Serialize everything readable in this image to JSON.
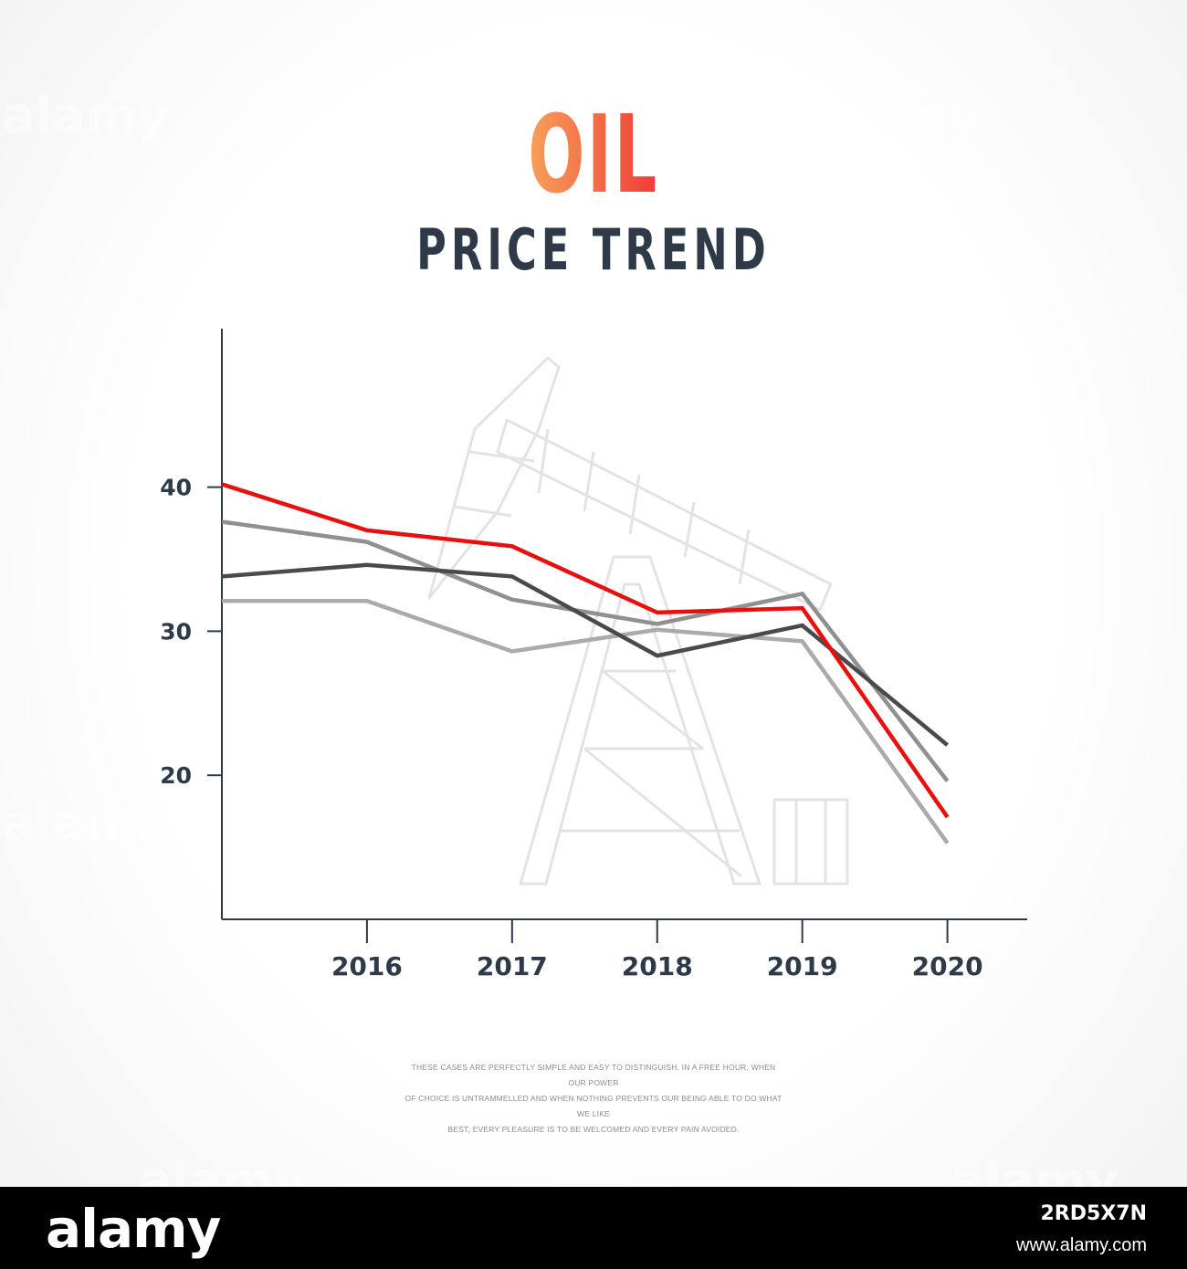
{
  "colors": {
    "title_gradient_start": "#f7a15a",
    "title_gradient_end": "#ef3b36",
    "subtitle": "#2e3a47",
    "axis": "#2e3a47",
    "background_icon": "#e3e3e3"
  },
  "background_icon": "oil-pump-jack-icon",
  "chart_data": {
    "type": "line",
    "title": "OIL",
    "subtitle": "PRICE TREND",
    "xlabel": "",
    "ylabel": "",
    "x": [
      2015,
      2016,
      2017,
      2018,
      2019,
      2020
    ],
    "xticks": [
      "2016",
      "2017",
      "2018",
      "2019",
      "2020"
    ],
    "yticks": [
      "20",
      "30",
      "40"
    ],
    "ylim": [
      10,
      51
    ],
    "xlim": [
      2015,
      2020.55
    ],
    "grid": false,
    "legend": "none",
    "series": [
      {
        "color": "#aaaaaa",
        "values": [
          32.1,
          32.1,
          28.6,
          30.1,
          29.3,
          15.3
        ]
      },
      {
        "color": "#909090",
        "values": [
          37.6,
          36.2,
          32.2,
          30.5,
          32.6,
          19.6
        ]
      },
      {
        "color": "#4a4a4a",
        "values": [
          33.8,
          34.6,
          33.8,
          28.3,
          30.4,
          22.1
        ]
      },
      {
        "color": "#e8100e",
        "values": [
          40.2,
          37.0,
          35.9,
          31.3,
          31.6,
          17.1
        ]
      }
    ]
  },
  "footnote": {
    "lines": [
      "These cases are perfectly simple and easy to distinguish. In a free hour, when our power",
      "of choice is untrammelled and when nothing prevents our being able to do what we like",
      "best, every pleasure is to be welcomed and every pain avoided."
    ]
  },
  "footer": {
    "logo": "alamy",
    "stock_id": "2RD5X7N",
    "site": "www.alamy.com"
  },
  "watermark": "alamy"
}
